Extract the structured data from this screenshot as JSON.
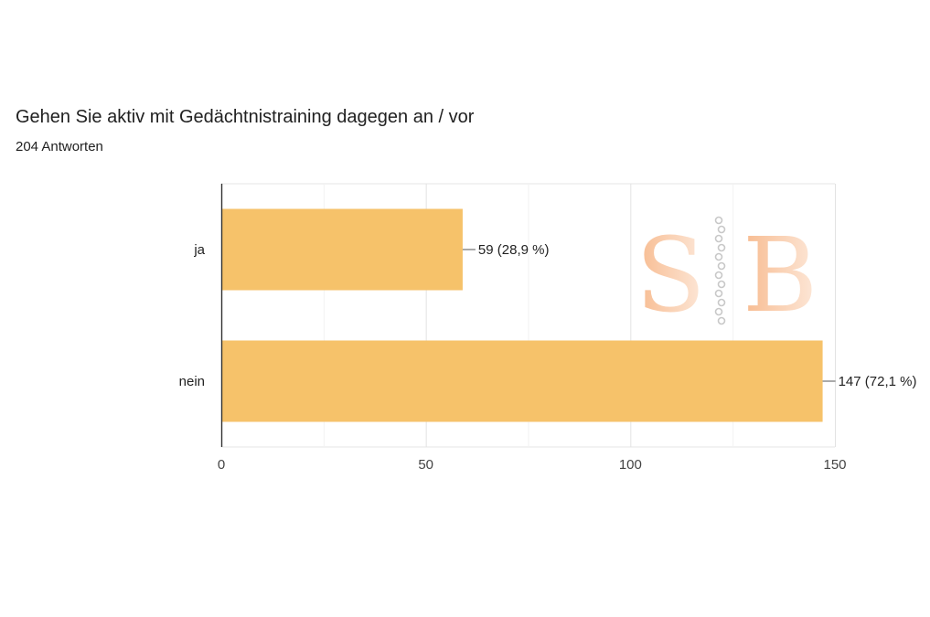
{
  "header": {
    "title": "Gehen Sie aktiv mit Gedächtnistraining dagegen an / vor",
    "subtitle": "204 Antworten"
  },
  "watermark": {
    "text": "SB",
    "color": "#f5a46a"
  },
  "chart_data": {
    "type": "bar",
    "orientation": "horizontal",
    "categories": [
      "ja",
      "nein"
    ],
    "values": [
      59,
      147
    ],
    "data_labels": [
      "59 (28,9 %)",
      "147 (72,1 %)"
    ],
    "xlim": [
      0,
      150
    ],
    "x_ticks": [
      0,
      50,
      100,
      150
    ],
    "x_tick_labels": [
      "0",
      "50",
      "100",
      "150"
    ],
    "minor_gridlines": [
      25,
      75,
      125
    ],
    "grid": true,
    "bar_color": "#f6c26a",
    "title": "Gehen Sie aktiv mit Gedächtnistraining dagegen an / vor",
    "xlabel": "",
    "ylabel": ""
  }
}
